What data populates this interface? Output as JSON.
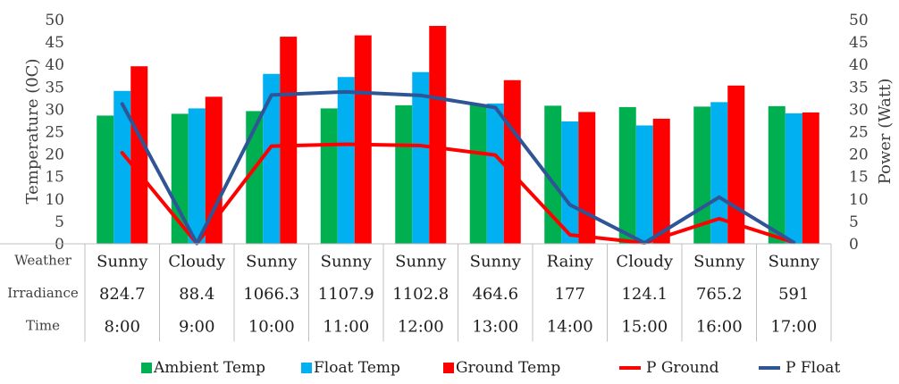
{
  "chart_data": {
    "type": "bar",
    "categories": [
      "8:00",
      "9:00",
      "10:00",
      "11:00",
      "12:00",
      "13:00",
      "14:00",
      "15:00",
      "16:00",
      "17:00"
    ],
    "y_left": {
      "label": "Temperature (0C)",
      "ylim": [
        0,
        50
      ],
      "ticks": [
        "0",
        "5",
        "10",
        "15",
        "20",
        "25",
        "30",
        "35",
        "40",
        "45",
        "50"
      ]
    },
    "y_right": {
      "label": "Power (Watt)",
      "ylim": [
        0,
        50
      ],
      "ticks": [
        "0",
        "5",
        "10",
        "15",
        "20",
        "25",
        "30",
        "35",
        "40",
        "45",
        "50"
      ]
    },
    "bar_series": [
      {
        "name": "Ambient Temp",
        "color": "#00B050",
        "values": [
          28.6,
          29.0,
          29.6,
          30.2,
          30.9,
          31.0,
          30.8,
          30.5,
          30.6,
          30.7
        ]
      },
      {
        "name": "Float Temp",
        "color": "#00B0F0",
        "values": [
          34.1,
          30.2,
          37.9,
          37.2,
          38.3,
          31.3,
          27.3,
          26.4,
          31.6,
          29.1
        ]
      },
      {
        "name": "Ground Temp",
        "color": "#FF0000",
        "values": [
          39.6,
          32.8,
          46.2,
          46.5,
          48.6,
          36.5,
          29.4,
          27.9,
          35.3,
          29.3
        ]
      }
    ],
    "line_series": [
      {
        "name": "P Ground",
        "color": "#FF0000",
        "values": [
          20.3,
          0.1,
          21.8,
          22.2,
          21.9,
          19.8,
          2.0,
          0.2,
          5.6,
          0.3
        ]
      },
      {
        "name": "P Float",
        "color": "#2F5597",
        "values": [
          31.2,
          0.1,
          33.2,
          33.9,
          33.1,
          30.4,
          8.7,
          0.2,
          10.4,
          0.3
        ]
      }
    ],
    "table": {
      "rows": [
        {
          "label": "Weather",
          "values": [
            "Sunny",
            "Cloudy",
            "Sunny",
            "Sunny",
            "Sunny",
            "Sunny",
            "Rainy",
            "Cloudy",
            "Sunny",
            "Sunny"
          ]
        },
        {
          "label": "Irradiance",
          "values": [
            "824.7",
            "88.4",
            "1066.3",
            "1107.9",
            "1102.8",
            "464.6",
            "177",
            "124.1",
            "765.2",
            "591"
          ]
        },
        {
          "label": "Time",
          "values": [
            "8:00",
            "9:00",
            "10:00",
            "11:00",
            "12:00",
            "13:00",
            "14:00",
            "15:00",
            "16:00",
            "17:00"
          ]
        }
      ]
    },
    "legend": {
      "position": "bottom",
      "items": [
        {
          "name": "Ambient Temp",
          "kind": "bar",
          "color": "#00B050"
        },
        {
          "name": "Float Temp",
          "kind": "bar",
          "color": "#00B0F0"
        },
        {
          "name": "Ground Temp",
          "kind": "bar",
          "color": "#FF0000"
        },
        {
          "name": "P Ground",
          "kind": "line",
          "color": "#FF0000"
        },
        {
          "name": "P Float",
          "kind": "line",
          "color": "#2F5597"
        }
      ]
    },
    "grid": false
  }
}
